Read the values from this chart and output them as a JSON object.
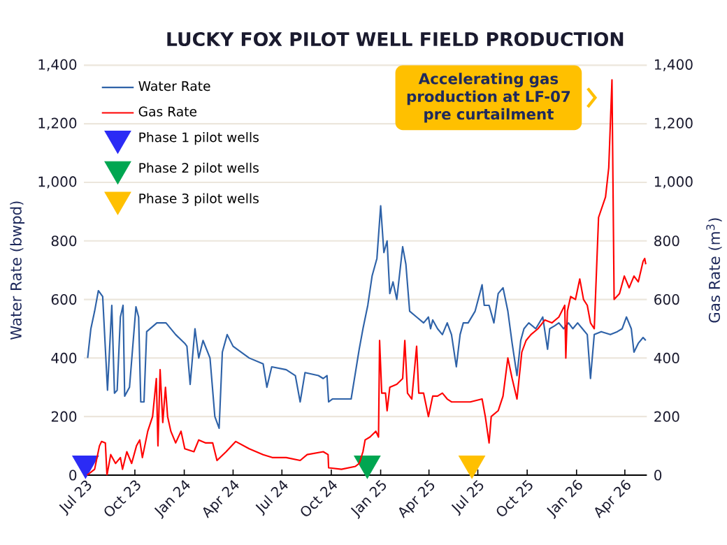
{
  "chart_data": {
    "type": "line",
    "title": "LUCKY FOX PILOT WELL FIELD PRODUCTION",
    "ylabel": "Water Rate (bwpd)",
    "y2label": "Gas Rate (m$^{3}$)",
    "xlim": [
      "2023-06-28",
      "2026-05-12"
    ],
    "xticks": [
      {
        "value": "2023-07-01",
        "label": "Jul 23"
      },
      {
        "value": "2023-10-01",
        "label": "Oct 23"
      },
      {
        "value": "2024-01-01",
        "label": "Jan 24"
      },
      {
        "value": "2024-04-01",
        "label": "Apr 24"
      },
      {
        "value": "2024-07-01",
        "label": "Jul 24"
      },
      {
        "value": "2024-10-01",
        "label": "Oct 24"
      },
      {
        "value": "2025-01-01",
        "label": "Jan 25"
      },
      {
        "value": "2025-04-01",
        "label": "Apr 25"
      },
      {
        "value": "2025-07-01",
        "label": "Jul 25"
      },
      {
        "value": "2025-10-01",
        "label": "Oct 25"
      },
      {
        "value": "2026-01-01",
        "label": "Jan 26"
      },
      {
        "value": "2026-04-01",
        "label": "Apr 26"
      }
    ],
    "ylim": [
      0,
      1400
    ],
    "yticks": [
      0,
      200,
      400,
      600,
      800,
      {
        "value": 1000,
        "label": "1,000"
      },
      {
        "value": 1200,
        "label": "1,200"
      },
      {
        "value": 1400,
        "label": "1,400"
      }
    ],
    "y2lim": [
      0,
      1400
    ],
    "y2ticks": [
      0,
      200,
      400,
      600,
      800,
      {
        "value": 1000,
        "label": "1,000"
      },
      {
        "value": 1200,
        "label": "1,200"
      },
      {
        "value": 1400,
        "label": "1,400"
      }
    ],
    "grid": "y",
    "legend": "top left",
    "series": [
      {
        "name": "Water Rate",
        "color": "#2e62a8",
        "x": [
          "2023-07-05",
          "2023-07-11",
          "2023-07-18",
          "2023-07-25",
          "2023-08-02",
          "2023-08-11",
          "2023-08-19",
          "2023-08-24",
          "2023-08-29",
          "2023-09-04",
          "2023-09-09",
          "2023-09-12",
          "2023-09-21",
          "2023-10-03",
          "2023-10-08",
          "2023-10-12",
          "2023-10-18",
          "2023-10-23",
          "2023-11-11",
          "2023-11-28",
          "2023-12-16",
          "2024-01-02",
          "2024-01-06",
          "2024-01-12",
          "2024-01-21",
          "2024-01-28",
          "2024-02-05",
          "2024-02-18",
          "2024-02-27",
          "2024-03-06",
          "2024-03-12",
          "2024-03-21",
          "2024-04-01",
          "2024-05-01",
          "2024-05-27",
          "2024-06-03",
          "2024-06-12",
          "2024-07-09",
          "2024-07-26",
          "2024-08-04",
          "2024-08-13",
          "2024-09-07",
          "2024-09-16",
          "2024-09-23",
          "2024-09-26",
          "2024-10-03",
          "2024-11-07",
          "2024-11-22",
          "2024-11-29",
          "2024-12-08",
          "2024-12-16",
          "2024-12-25",
          "2025-01-01",
          "2025-01-07",
          "2025-01-13",
          "2025-01-18",
          "2025-01-24",
          "2025-01-31",
          "2025-02-11",
          "2025-02-17",
          "2025-02-24",
          "2025-03-09",
          "2025-03-22",
          "2025-03-31",
          "2025-04-04",
          "2025-04-08",
          "2025-04-17",
          "2025-04-26",
          "2025-05-05",
          "2025-05-13",
          "2025-05-22",
          "2025-05-29",
          "2025-06-04",
          "2025-06-13",
          "2025-06-26",
          "2025-07-09",
          "2025-07-13",
          "2025-07-22",
          "2025-07-31",
          "2025-08-08",
          "2025-08-17",
          "2025-08-26",
          "2025-09-03",
          "2025-09-12",
          "2025-09-19",
          "2025-09-25",
          "2025-10-04",
          "2025-10-17",
          "2025-10-30",
          "2025-11-08",
          "2025-11-12",
          "2025-11-21",
          "2025-11-29",
          "2025-12-08",
          "2025-12-17",
          "2025-12-25",
          "2026-01-03",
          "2026-01-12",
          "2026-01-21",
          "2026-01-27",
          "2026-02-03",
          "2026-02-16",
          "2026-03-05",
          "2026-03-18",
          "2026-03-27",
          "2026-04-04",
          "2026-04-13",
          "2026-04-18",
          "2026-04-26",
          "2026-05-05",
          "2026-05-10"
        ],
        "values": [
          400,
          500,
          560,
          630,
          610,
          290,
          580,
          280,
          290,
          540,
          580,
          270,
          300,
          575,
          540,
          250,
          250,
          490,
          520,
          520,
          480,
          450,
          440,
          310,
          500,
          400,
          460,
          400,
          200,
          160,
          420,
          480,
          440,
          400,
          380,
          300,
          370,
          360,
          340,
          250,
          350,
          340,
          330,
          340,
          250,
          260,
          260,
          430,
          500,
          580,
          680,
          740,
          920,
          760,
          800,
          620,
          660,
          600,
          780,
          720,
          560,
          540,
          520,
          540,
          500,
          530,
          500,
          480,
          520,
          480,
          370,
          480,
          520,
          520,
          560,
          650,
          580,
          580,
          520,
          620,
          640,
          560,
          450,
          340,
          460,
          500,
          520,
          500,
          540,
          430,
          500,
          510,
          520,
          500,
          520,
          500,
          520,
          500,
          480,
          330,
          480,
          490,
          480,
          490,
          500,
          540,
          500,
          420,
          450,
          470,
          460
        ]
      },
      {
        "name": "Gas Rate",
        "axis": "y2",
        "color": "#ff0000",
        "x": [
          "2023-07-04",
          "2023-07-18",
          "2023-07-27",
          "2023-07-31",
          "2023-08-07",
          "2023-08-10",
          "2023-08-17",
          "2023-08-26",
          "2023-09-04",
          "2023-09-08",
          "2023-09-16",
          "2023-09-25",
          "2023-10-04",
          "2023-10-10",
          "2023-10-15",
          "2023-10-25",
          "2023-11-03",
          "2023-11-10",
          "2023-11-13",
          "2023-11-17",
          "2023-11-22",
          "2023-11-27",
          "2023-12-01",
          "2023-12-07",
          "2023-12-16",
          "2023-12-26",
          "2024-01-02",
          "2024-01-19",
          "2024-01-28",
          "2024-02-10",
          "2024-02-23",
          "2024-03-02",
          "2024-03-19",
          "2024-04-06",
          "2024-05-01",
          "2024-05-27",
          "2024-06-13",
          "2024-07-09",
          "2024-08-04",
          "2024-08-17",
          "2024-09-16",
          "2024-09-25",
          "2024-09-26",
          "2024-10-20",
          "2024-11-15",
          "2024-11-22",
          "2024-11-29",
          "2024-12-03",
          "2024-12-12",
          "2024-12-23",
          "2024-12-28",
          "2024-12-30",
          "2025-01-03",
          "2025-01-10",
          "2025-01-13",
          "2025-01-18",
          "2025-01-31",
          "2025-02-11",
          "2025-02-15",
          "2025-02-20",
          "2025-02-28",
          "2025-03-09",
          "2025-03-13",
          "2025-03-22",
          "2025-03-31",
          "2025-04-08",
          "2025-04-17",
          "2025-04-26",
          "2025-05-05",
          "2025-05-13",
          "2025-05-31",
          "2025-06-17",
          "2025-07-09",
          "2025-07-15",
          "2025-07-22",
          "2025-07-26",
          "2025-08-08",
          "2025-08-17",
          "2025-08-26",
          "2025-09-03",
          "2025-09-12",
          "2025-09-21",
          "2025-09-29",
          "2025-10-08",
          "2025-10-21",
          "2025-11-03",
          "2025-11-16",
          "2025-11-29",
          "2025-12-10",
          "2025-12-12",
          "2025-12-15",
          "2025-12-21",
          "2025-12-30",
          "2026-01-07",
          "2026-01-14",
          "2026-01-21",
          "2026-01-27",
          "2026-02-03",
          "2026-02-11",
          "2026-02-24",
          "2026-03-02",
          "2026-03-08",
          "2026-03-12",
          "2026-03-22",
          "2026-03-31",
          "2026-04-09",
          "2026-04-18",
          "2026-04-26",
          "2026-05-05",
          "2026-05-08",
          "2026-05-10"
        ],
        "values": [
          0,
          20,
          100,
          115,
          110,
          0,
          70,
          40,
          60,
          20,
          80,
          40,
          100,
          120,
          60,
          150,
          200,
          330,
          100,
          360,
          180,
          300,
          200,
          150,
          110,
          150,
          90,
          80,
          120,
          110,
          110,
          50,
          80,
          115,
          90,
          70,
          60,
          60,
          50,
          70,
          80,
          70,
          25,
          20,
          30,
          40,
          80,
          120,
          130,
          150,
          130,
          460,
          280,
          280,
          220,
          300,
          310,
          330,
          460,
          280,
          260,
          440,
          280,
          280,
          200,
          270,
          270,
          280,
          260,
          250,
          250,
          250,
          260,
          200,
          110,
          200,
          220,
          270,
          400,
          330,
          260,
          420,
          460,
          480,
          500,
          530,
          520,
          540,
          580,
          400,
          560,
          610,
          600,
          670,
          600,
          580,
          520,
          500,
          880,
          950,
          1050,
          1350,
          600,
          620,
          680,
          640,
          680,
          660,
          730,
          740,
          720
        ]
      },
      {
        "name": "Phase 1 pilot wells",
        "type": "scatter",
        "marker": "triangle",
        "color": "#2b2bf5",
        "x": [
          "2023-07-01"
        ],
        "values": [
          40
        ]
      },
      {
        "name": "Phase 2 pilot wells",
        "type": "scatter",
        "marker": "triangle",
        "color": "#00a651",
        "x": [
          "2024-12-07"
        ],
        "values": [
          40
        ]
      },
      {
        "name": "Phase 3 pilot wells",
        "type": "scatter",
        "marker": "triangle",
        "color": "#ffc000",
        "x": [
          "2025-06-20"
        ],
        "values": [
          40
        ]
      }
    ],
    "annotations": [
      {
        "text": "**Accelerating gas production at LF-07 pre curtailment**",
        "x": "2026-03-08",
        "y": 1350
      }
    ]
  }
}
